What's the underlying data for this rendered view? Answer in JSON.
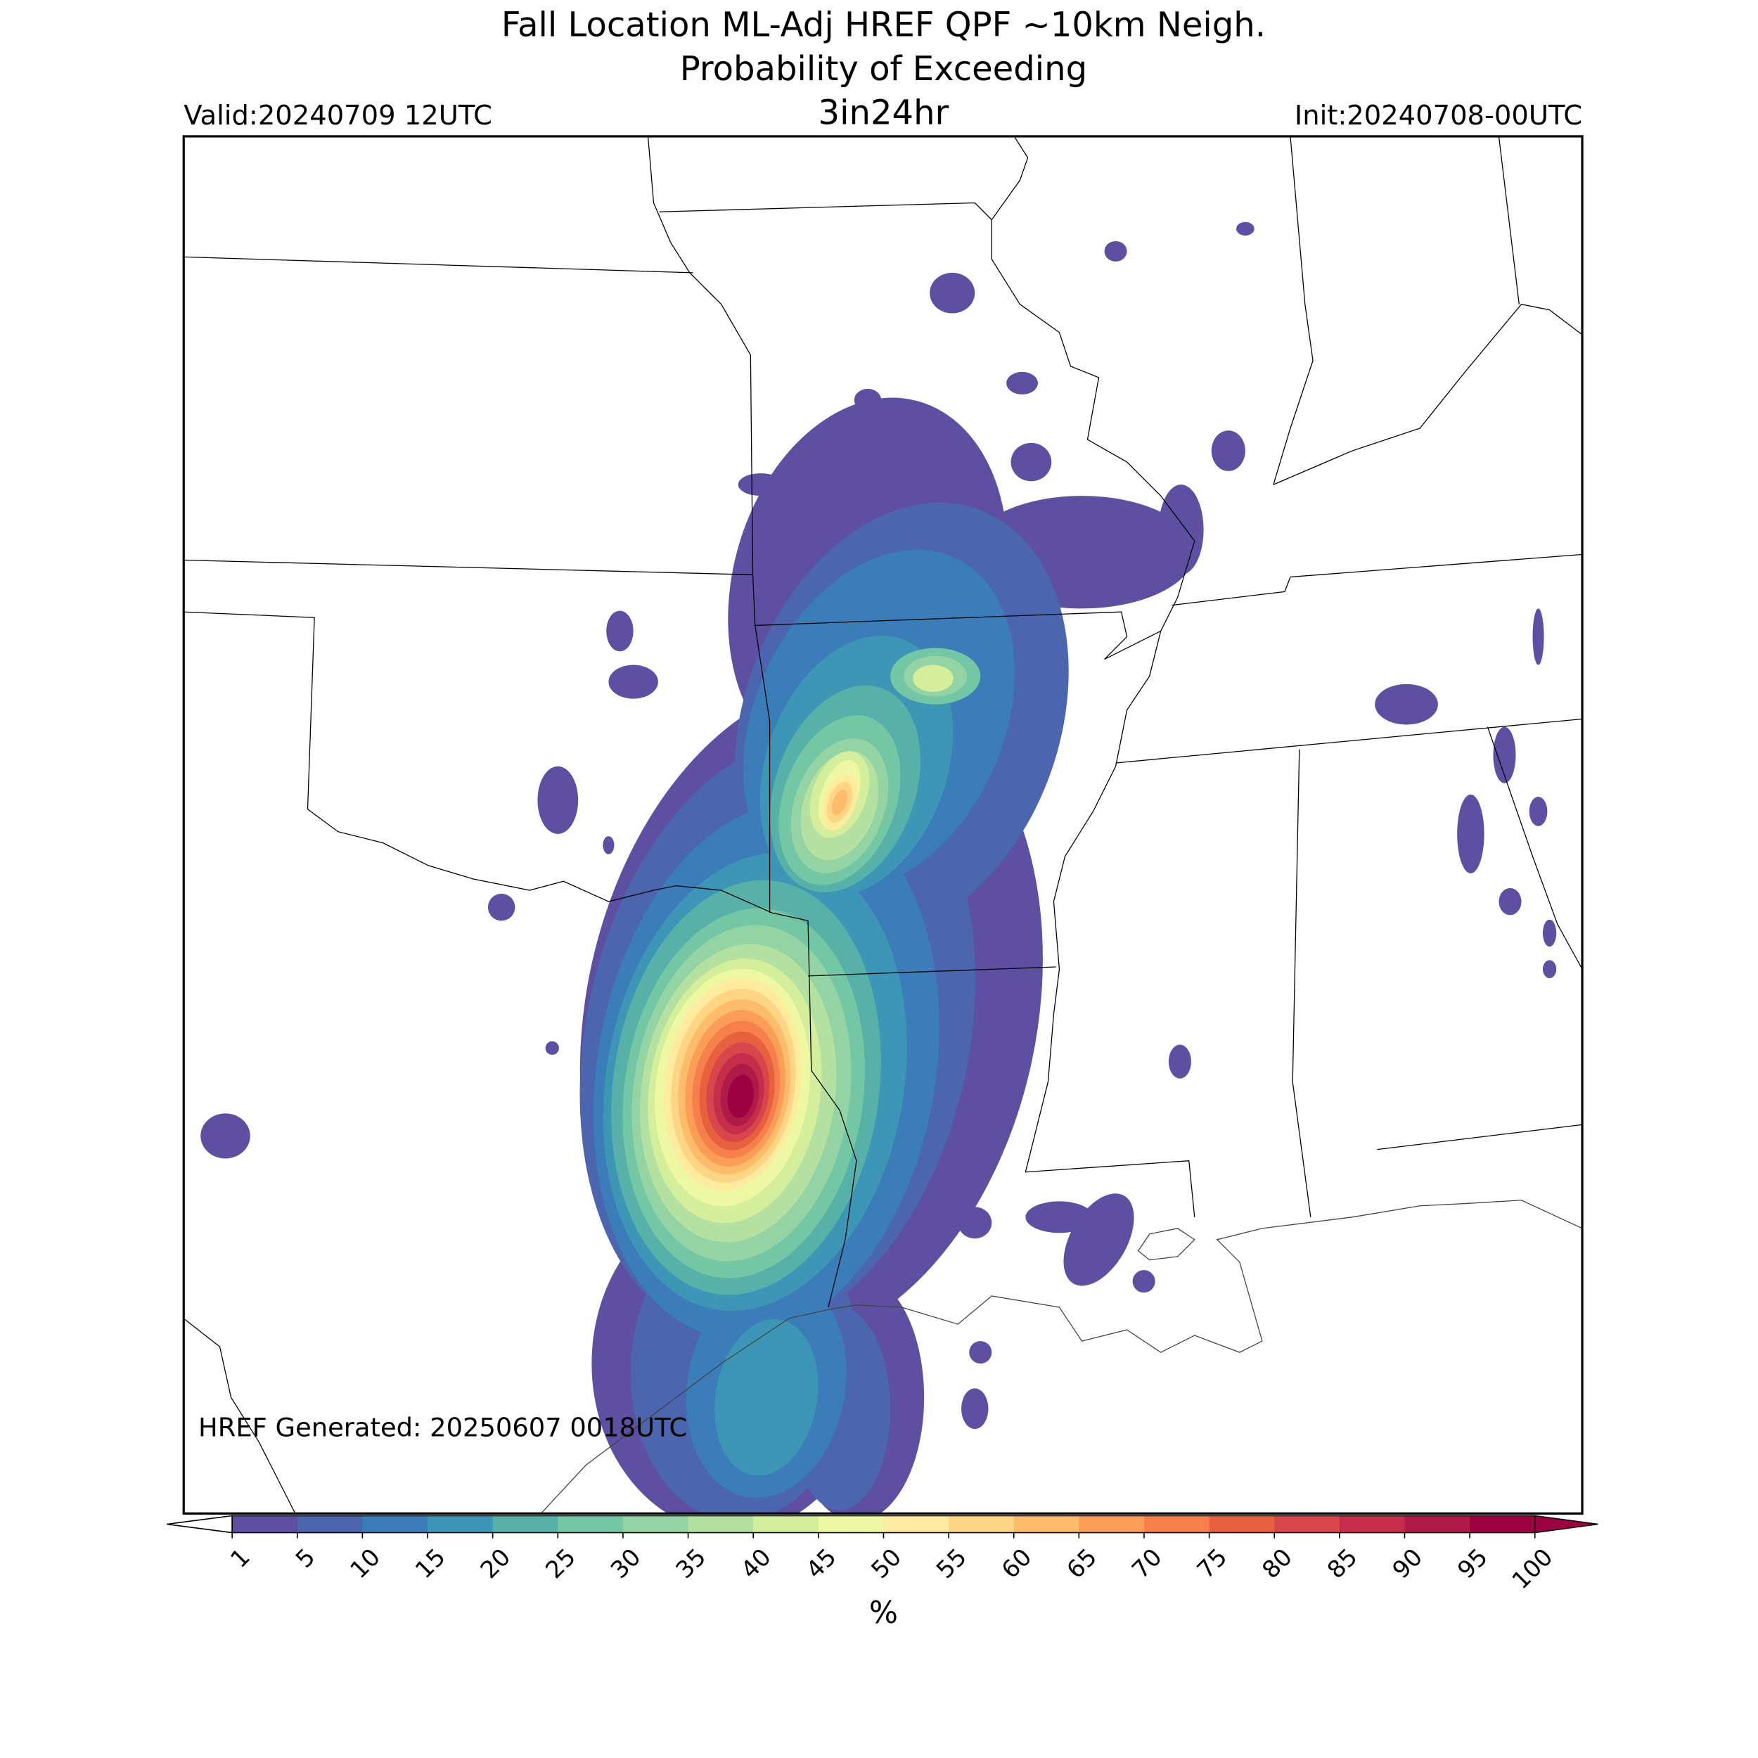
{
  "chart_data": {
    "type": "probability-map",
    "title": "Fall Location ML-Adj HREF QPF ~10km Neigh.",
    "subtitle": "Probability of Exceeding",
    "threshold": "3in24hr",
    "valid": "Valid:20240709 12UTC",
    "init": "Init:20240708-00UTC",
    "annotation": "HREF Generated: 20250607 0018UTC",
    "colorbar": {
      "label": "%",
      "ticks": [
        1,
        5,
        10,
        15,
        20,
        25,
        30,
        35,
        40,
        45,
        50,
        55,
        60,
        65,
        70,
        75,
        80,
        85,
        90,
        95,
        100
      ],
      "colors": [
        "#5e4fa2",
        "#4b65ae",
        "#3a7db8",
        "#3e96b6",
        "#58b1a9",
        "#74c7a5",
        "#94d4a4",
        "#b4e0a2",
        "#d4ee9c",
        "#eef8a3",
        "#feeb9d",
        "#fed584",
        "#fdbb6c",
        "#fb9d59",
        "#f67f4b",
        "#e8613f",
        "#d8464c",
        "#c72d4b",
        "#b01a48",
        "#9e0142"
      ],
      "extend": "both"
    }
  }
}
